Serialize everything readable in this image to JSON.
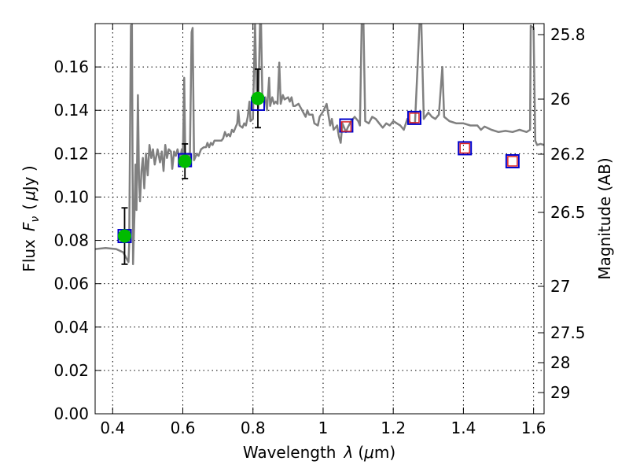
{
  "chart_data": {
    "type": "scatter",
    "xlabel": "Wavelength",
    "xlabel_symbol": "λ",
    "xlabel_unit_left": "(",
    "xlabel_unit_mu": "μ",
    "xlabel_unit_right": "m)",
    "ylabel": "Flux",
    "ylabel_symbol": "F",
    "ylabel_subscript": "ν",
    "ylabel_unit_left": "(",
    "ylabel_unit_mu": "μ",
    "ylabel_unit_right": "Jy )",
    "ylabel_right": "Magnitude (AB)",
    "xlim": [
      0.35,
      1.63
    ],
    "ylim": [
      0.0,
      0.18
    ],
    "grid": true,
    "x_ticks": [
      {
        "value": 0.4,
        "label": "0.4"
      },
      {
        "value": 0.6,
        "label": "0.6"
      },
      {
        "value": 0.8,
        "label": "0.8"
      },
      {
        "value": 1.0,
        "label": "1"
      },
      {
        "value": 1.2,
        "label": "1.2"
      },
      {
        "value": 1.4,
        "label": "1.4"
      },
      {
        "value": 1.6,
        "label": "1.6"
      }
    ],
    "y_ticks": [
      {
        "value": 0.0,
        "label": "0.00"
      },
      {
        "value": 0.02,
        "label": "0.02"
      },
      {
        "value": 0.04,
        "label": "0.04"
      },
      {
        "value": 0.06,
        "label": "0.06"
      },
      {
        "value": 0.08,
        "label": "0.08"
      },
      {
        "value": 0.1,
        "label": "0.10"
      },
      {
        "value": 0.12,
        "label": "0.12"
      },
      {
        "value": 0.14,
        "label": "0.14"
      },
      {
        "value": 0.16,
        "label": "0.16"
      }
    ],
    "right_ticks": [
      {
        "label": "25.8"
      },
      {
        "label": "26"
      },
      {
        "label": "26.2"
      },
      {
        "label": "26.5"
      },
      {
        "label": "27"
      },
      {
        "label": "27.5"
      },
      {
        "label": "28"
      },
      {
        "label": "29"
      }
    ],
    "series": [
      {
        "name": "observed_photometry",
        "style": "green-circle-with-errorbar",
        "color": "#00bb00",
        "points": [
          {
            "x": 0.434,
            "y": 0.082,
            "yerr": 0.013
          },
          {
            "x": 0.606,
            "y": 0.1165,
            "yerr": 0.008
          },
          {
            "x": 0.814,
            "y": 0.1455,
            "yerr": 0.0135
          }
        ]
      },
      {
        "name": "model_photometry",
        "style": "blue-square",
        "color": "#0000cc",
        "points": [
          {
            "x": 0.434,
            "y": 0.082
          },
          {
            "x": 0.606,
            "y": 0.117
          },
          {
            "x": 0.814,
            "y": 0.143
          },
          {
            "x": 1.066,
            "y": 0.133
          },
          {
            "x": 1.26,
            "y": 0.1365
          },
          {
            "x": 1.404,
            "y": 0.1225
          },
          {
            "x": 1.54,
            "y": 0.1165
          }
        ]
      },
      {
        "name": "predicted_photometry",
        "style": "red-square",
        "color": "#dd2222",
        "points": [
          {
            "x": 1.066,
            "y": 0.1325
          },
          {
            "x": 1.26,
            "y": 0.1365
          },
          {
            "x": 1.404,
            "y": 0.1225
          },
          {
            "x": 1.54,
            "y": 0.1165
          }
        ]
      },
      {
        "name": "sed_template_spectrum",
        "style": "grey-line",
        "color": "#808080",
        "points": [
          [
            0.35,
            0.076
          ],
          [
            0.38,
            0.0765
          ],
          [
            0.41,
            0.076
          ],
          [
            0.43,
            0.0745
          ],
          [
            0.445,
            0.07
          ],
          [
            0.447,
            0.078
          ],
          [
            0.452,
            0.179
          ],
          [
            0.455,
            0.18
          ],
          [
            0.458,
            0.069
          ],
          [
            0.462,
            0.092
          ],
          [
            0.465,
            0.115
          ],
          [
            0.468,
            0.094
          ],
          [
            0.472,
            0.147
          ],
          [
            0.475,
            0.108
          ],
          [
            0.478,
            0.098
          ],
          [
            0.482,
            0.112
          ],
          [
            0.486,
            0.118
          ],
          [
            0.49,
            0.104
          ],
          [
            0.495,
            0.12
          ],
          [
            0.5,
            0.11
          ],
          [
            0.505,
            0.124
          ],
          [
            0.51,
            0.118
          ],
          [
            0.515,
            0.122
          ],
          [
            0.52,
            0.115
          ],
          [
            0.528,
            0.122
          ],
          [
            0.535,
            0.116
          ],
          [
            0.54,
            0.121
          ],
          [
            0.545,
            0.112
          ],
          [
            0.55,
            0.124
          ],
          [
            0.555,
            0.118
          ],
          [
            0.56,
            0.122
          ],
          [
            0.566,
            0.121
          ],
          [
            0.57,
            0.113
          ],
          [
            0.575,
            0.121
          ],
          [
            0.58,
            0.119
          ],
          [
            0.585,
            0.122
          ],
          [
            0.592,
            0.117
          ],
          [
            0.597,
            0.122
          ],
          [
            0.6,
            0.116
          ],
          [
            0.604,
            0.155
          ],
          [
            0.607,
            0.121
          ],
          [
            0.61,
            0.118
          ],
          [
            0.615,
            0.12
          ],
          [
            0.62,
            0.116
          ],
          [
            0.625,
            0.176
          ],
          [
            0.628,
            0.178
          ],
          [
            0.632,
            0.117
          ],
          [
            0.64,
            0.12
          ],
          [
            0.645,
            0.119
          ],
          [
            0.652,
            0.122
          ],
          [
            0.66,
            0.123
          ],
          [
            0.666,
            0.123
          ],
          [
            0.67,
            0.125
          ],
          [
            0.675,
            0.123
          ],
          [
            0.68,
            0.125
          ],
          [
            0.685,
            0.124
          ],
          [
            0.69,
            0.126
          ],
          [
            0.7,
            0.126
          ],
          [
            0.71,
            0.126
          ],
          [
            0.715,
            0.127
          ],
          [
            0.72,
            0.13
          ],
          [
            0.725,
            0.128
          ],
          [
            0.73,
            0.129
          ],
          [
            0.735,
            0.128
          ],
          [
            0.74,
            0.131
          ],
          [
            0.745,
            0.13
          ],
          [
            0.75,
            0.132
          ],
          [
            0.755,
            0.134
          ],
          [
            0.758,
            0.14
          ],
          [
            0.762,
            0.133
          ],
          [
            0.77,
            0.132
          ],
          [
            0.775,
            0.134
          ],
          [
            0.78,
            0.133
          ],
          [
            0.785,
            0.137
          ],
          [
            0.79,
            0.144
          ],
          [
            0.793,
            0.135
          ],
          [
            0.8,
            0.136
          ],
          [
            0.806,
            0.18
          ],
          [
            0.81,
            0.15
          ],
          [
            0.815,
            0.141
          ],
          [
            0.82,
            0.18
          ],
          [
            0.823,
            0.18
          ],
          [
            0.827,
            0.144
          ],
          [
            0.835,
            0.146
          ],
          [
            0.84,
            0.14
          ],
          [
            0.846,
            0.155
          ],
          [
            0.849,
            0.142
          ],
          [
            0.855,
            0.146
          ],
          [
            0.86,
            0.143
          ],
          [
            0.865,
            0.144
          ],
          [
            0.87,
            0.143
          ],
          [
            0.875,
            0.162
          ],
          [
            0.879,
            0.143
          ],
          [
            0.885,
            0.147
          ],
          [
            0.89,
            0.145
          ],
          [
            0.9,
            0.146
          ],
          [
            0.905,
            0.144
          ],
          [
            0.91,
            0.146
          ],
          [
            0.915,
            0.142
          ],
          [
            0.92,
            0.142
          ],
          [
            0.93,
            0.143
          ],
          [
            0.94,
            0.14
          ],
          [
            0.95,
            0.137
          ],
          [
            0.955,
            0.14
          ],
          [
            0.96,
            0.138
          ],
          [
            0.97,
            0.138
          ],
          [
            0.975,
            0.134
          ],
          [
            0.985,
            0.133
          ],
          [
            0.99,
            0.137
          ],
          [
            1.0,
            0.1395
          ],
          [
            1.01,
            0.143
          ],
          [
            1.02,
            0.133
          ],
          [
            1.025,
            0.136
          ],
          [
            1.03,
            0.131
          ],
          [
            1.04,
            0.133
          ],
          [
            1.045,
            0.128
          ],
          [
            1.05,
            0.125
          ],
          [
            1.055,
            0.134
          ],
          [
            1.065,
            0.13
          ],
          [
            1.07,
            0.132
          ],
          [
            1.08,
            0.135
          ],
          [
            1.09,
            0.137
          ],
          [
            1.1,
            0.135
          ],
          [
            1.105,
            0.133
          ],
          [
            1.11,
            0.18
          ],
          [
            1.115,
            0.18
          ],
          [
            1.12,
            0.135
          ],
          [
            1.13,
            0.134
          ],
          [
            1.14,
            0.137
          ],
          [
            1.15,
            0.136
          ],
          [
            1.16,
            0.134
          ],
          [
            1.17,
            0.132
          ],
          [
            1.18,
            0.134
          ],
          [
            1.19,
            0.133
          ],
          [
            1.2,
            0.135
          ],
          [
            1.22,
            0.133
          ],
          [
            1.23,
            0.131
          ],
          [
            1.24,
            0.136
          ],
          [
            1.25,
            0.134
          ],
          [
            1.262,
            0.134
          ],
          [
            1.275,
            0.18
          ],
          [
            1.28,
            0.18
          ],
          [
            1.287,
            0.136
          ],
          [
            1.3,
            0.139
          ],
          [
            1.31,
            0.137
          ],
          [
            1.32,
            0.136
          ],
          [
            1.33,
            0.138
          ],
          [
            1.34,
            0.16
          ],
          [
            1.345,
            0.137
          ],
          [
            1.36,
            0.135
          ],
          [
            1.38,
            0.134
          ],
          [
            1.4,
            0.134
          ],
          [
            1.42,
            0.133
          ],
          [
            1.44,
            0.133
          ],
          [
            1.45,
            0.131
          ],
          [
            1.46,
            0.1325
          ],
          [
            1.48,
            0.131
          ],
          [
            1.5,
            0.13
          ],
          [
            1.52,
            0.1305
          ],
          [
            1.54,
            0.13
          ],
          [
            1.56,
            0.131
          ],
          [
            1.58,
            0.13
          ],
          [
            1.59,
            0.131
          ],
          [
            1.592,
            0.179
          ],
          [
            1.6,
            0.178
          ],
          [
            1.605,
            0.126
          ],
          [
            1.61,
            0.124
          ],
          [
            1.62,
            0.1245
          ],
          [
            1.63,
            0.124
          ]
        ]
      }
    ]
  }
}
